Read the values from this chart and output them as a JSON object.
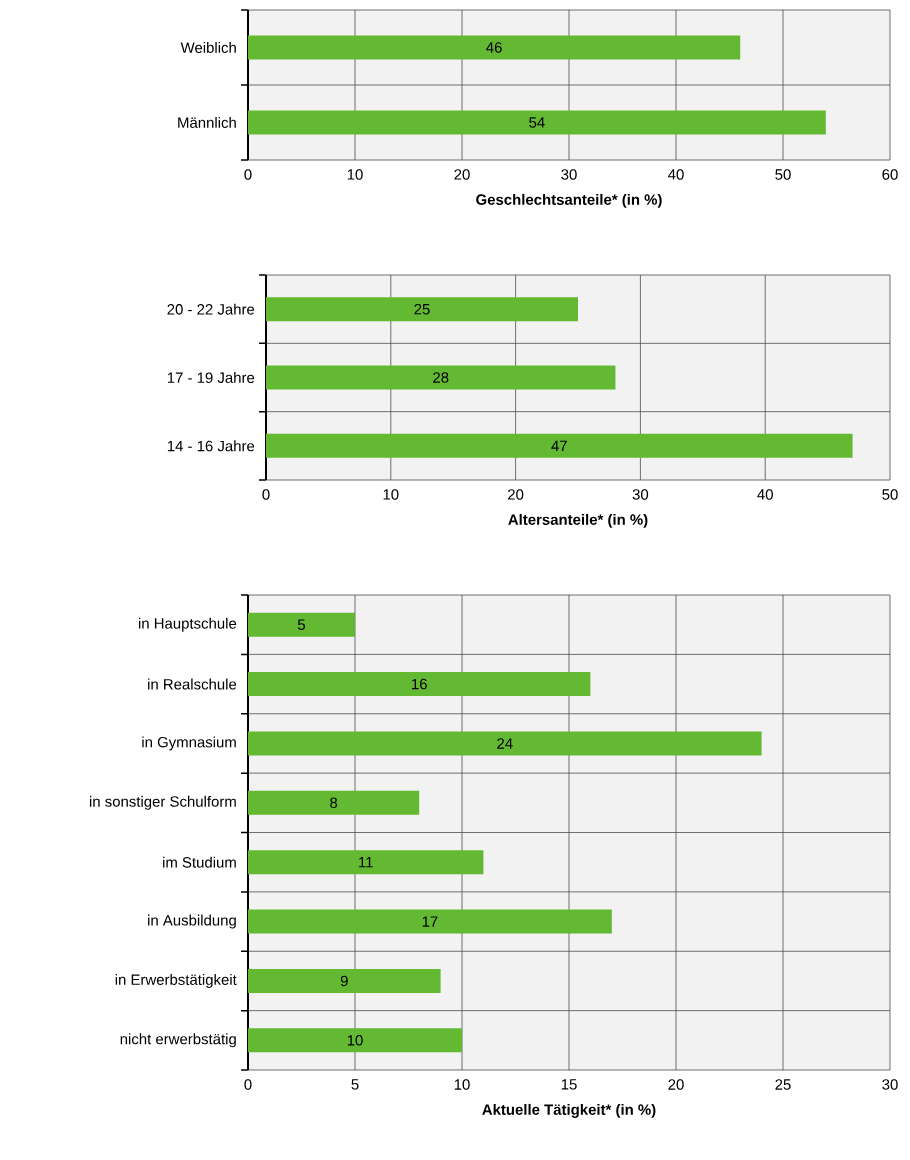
{
  "chart_data": [
    {
      "type": "bar",
      "orientation": "horizontal",
      "categories": [
        "Weiblich",
        "Männlich"
      ],
      "values": [
        46,
        54
      ],
      "color": "#63b931",
      "xlim": [
        0,
        60
      ],
      "xticks": [
        0,
        10,
        20,
        30,
        40,
        50,
        60
      ],
      "xlabel": "Geschlechtsanteile* (in %)",
      "data_labels": true,
      "grid": true
    },
    {
      "type": "bar",
      "orientation": "horizontal",
      "categories": [
        "20 - 22 Jahre",
        "17 - 19 Jahre",
        "14 - 16 Jahre"
      ],
      "values": [
        25,
        28,
        47
      ],
      "color": "#63b931",
      "xlim": [
        0,
        50
      ],
      "xticks": [
        0,
        10,
        20,
        30,
        40,
        50
      ],
      "xlabel": "Altersanteile* (in %)",
      "data_labels": true,
      "grid": true
    },
    {
      "type": "bar",
      "orientation": "horizontal",
      "categories": [
        "in Hauptschule",
        "in Realschule",
        "in Gymnasium",
        "in sonstiger Schulform",
        "im Studium",
        "in Ausbildung",
        "in Erwerbstätigkeit",
        "nicht erwerbstätig"
      ],
      "values": [
        5,
        16,
        24,
        8,
        11,
        17,
        9,
        10
      ],
      "color": "#63b931",
      "xlim": [
        0,
        30
      ],
      "xticks": [
        0,
        5,
        10,
        15,
        20,
        25,
        30
      ],
      "xlabel": "Aktuelle Tätigkeit* (in %)",
      "data_labels": true,
      "grid": true
    }
  ]
}
